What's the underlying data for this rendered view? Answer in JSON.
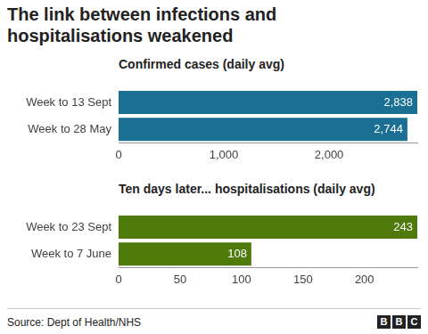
{
  "title": "The link between infections and hospitalisations weakened",
  "source": "Source: Dept of Health/NHS",
  "logo": "BBC",
  "chart_data": [
    {
      "type": "bar",
      "orientation": "horizontal",
      "title": "Confirmed cases (daily avg)",
      "categories": [
        "Week to 13 Sept",
        "Week to 28 May"
      ],
      "values": [
        2838,
        2744
      ],
      "value_labels": [
        "2,838",
        "2,744"
      ],
      "data_labels": true,
      "color": "#1b6f93",
      "grid": false,
      "xlim": [
        0,
        2838
      ],
      "xticks": [
        0,
        {
          "value": 1000,
          "label": "1,000"
        },
        {
          "value": 2000,
          "label": "2,000"
        }
      ]
    },
    {
      "type": "bar",
      "orientation": "horizontal",
      "title": "Ten days later... hospitalisations (daily avg)",
      "categories": [
        "Week to 23 Sept",
        "Week to 7 June"
      ],
      "values": [
        243,
        108
      ],
      "data_labels": true,
      "color": "#4f7a0c",
      "grid": false,
      "xlim": [
        0,
        243
      ],
      "xticks": [
        0,
        50,
        100,
        150,
        200
      ]
    }
  ]
}
